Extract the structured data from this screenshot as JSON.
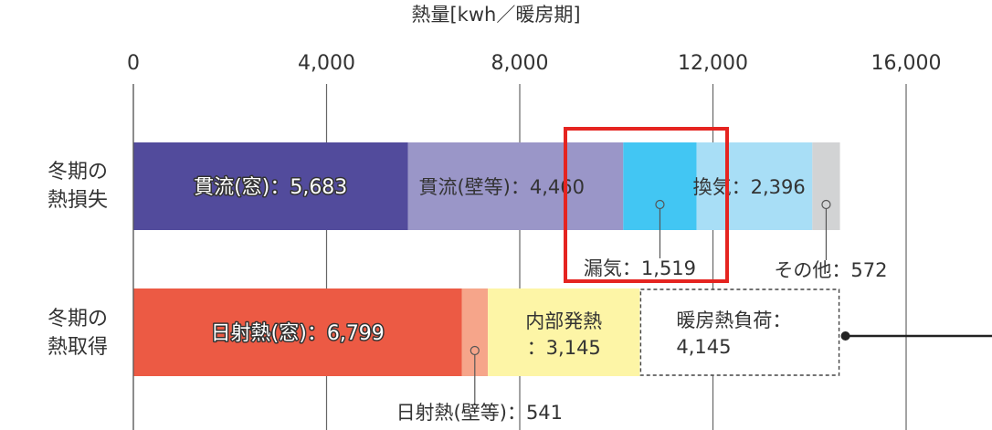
{
  "chart_data": {
    "type": "bar",
    "orientation": "horizontal",
    "stacked": true,
    "title": "熱量[kwh／暖房期]",
    "xlim": [
      0,
      16000
    ],
    "xticks": [
      0,
      4000,
      8000,
      12000,
      16000
    ],
    "xtick_labels": [
      "0",
      "4,000",
      "8,000",
      "12,000",
      "16,000"
    ],
    "grid": true,
    "categories": [
      [
        "冬期の",
        "熱損失"
      ],
      [
        "冬期の",
        "熱取得"
      ]
    ],
    "bars": [
      {
        "category_index": 0,
        "segments": [
          {
            "label": "貫流(窓)：5,683",
            "value": 5683,
            "color": "#524b9c",
            "text_color": "#ffffff",
            "label_style": "outlined-inside"
          },
          {
            "label": "貫流(壁等)：4,460",
            "value": 4460,
            "color": "#9a96c8",
            "text_color": "#333333",
            "label_style": "inside"
          },
          {
            "label": "漏気：1,519",
            "value": 1519,
            "color": "#42c6f3",
            "text_color": "#333333",
            "label_style": "below-callout"
          },
          {
            "label": "換気：2,396",
            "value": 2396,
            "color": "#a8def6",
            "text_color": "#333333",
            "label_style": "inside"
          },
          {
            "label": "その他：572",
            "value": 572,
            "color": "#d2d3d4",
            "text_color": "#333333",
            "label_style": "below-callout"
          }
        ]
      },
      {
        "category_index": 1,
        "segments": [
          {
            "label": "日射熱(窓)：6,799",
            "value": 6799,
            "color": "#ec5a44",
            "text_color": "#ffffff",
            "label_style": "outlined-inside"
          },
          {
            "label": "日射熱(壁等)：541",
            "value": 541,
            "color": "#f6a58a",
            "text_color": "#333333",
            "label_style": "below-callout"
          },
          {
            "label": "内部発熱\n：3,145",
            "value": 3145,
            "color": "#fdf5a6",
            "text_color": "#333333",
            "label_style": "inside"
          },
          {
            "label": "暖房熱負荷：\n4,145",
            "value": 4145,
            "color": "#ffffff",
            "text_color": "#333333",
            "label_style": "dashed-box"
          }
        ]
      }
    ],
    "highlight": {
      "segment": "漏気",
      "color": "#e52420"
    },
    "palette": {
      "axis": "#555555",
      "grid": "#666666",
      "callout_line": "#555555",
      "outline_text_stroke": "#333333",
      "connector": "#222222"
    }
  }
}
